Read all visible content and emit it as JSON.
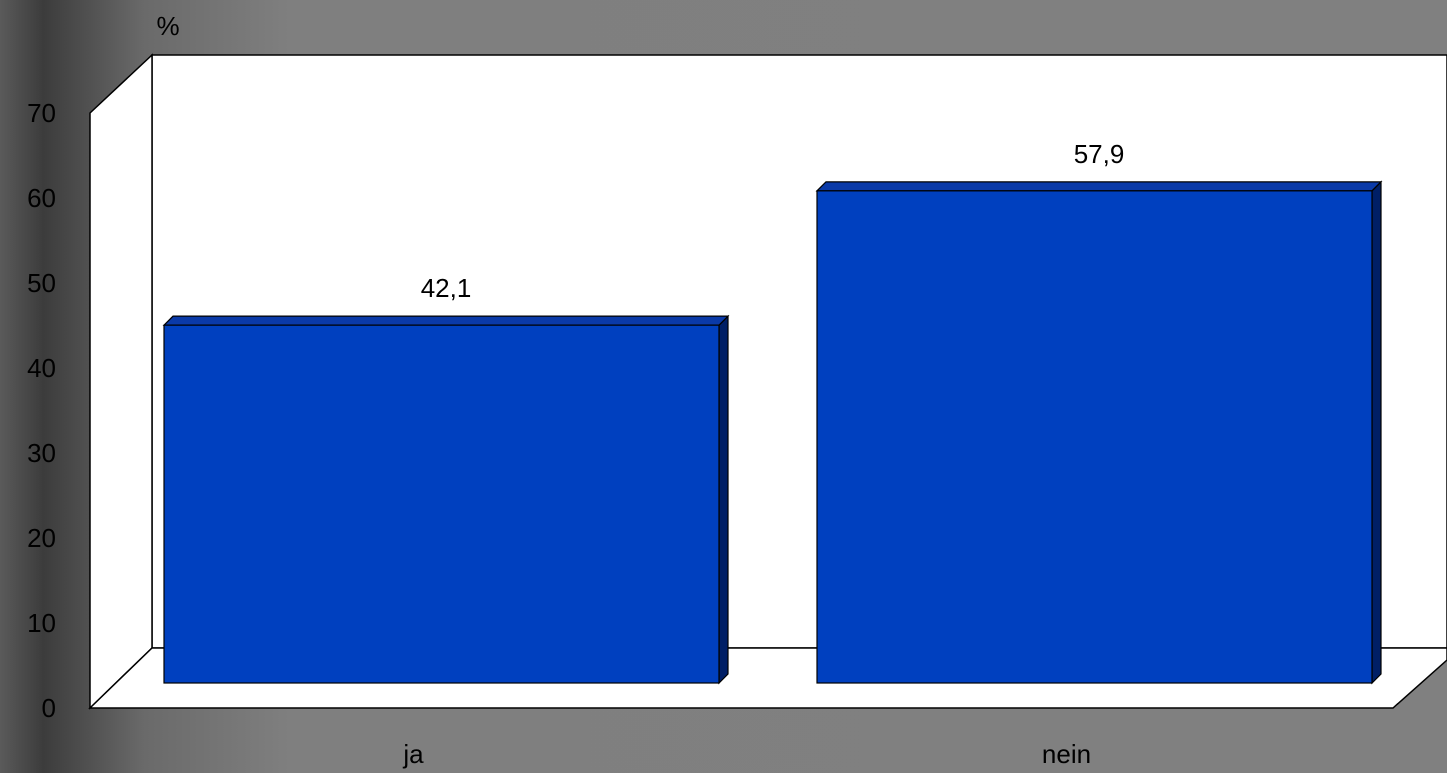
{
  "chart_data": {
    "type": "bar",
    "categories": [
      "ja",
      "nein"
    ],
    "values": [
      42.1,
      57.9
    ],
    "data_labels": [
      "42,1",
      "57,9"
    ],
    "ylabel": "%",
    "ylim": [
      0,
      70
    ],
    "yticks": [
      "0",
      "10",
      "20",
      "30",
      "40",
      "50",
      "60",
      "70"
    ],
    "grid": false,
    "legend": "none",
    "three_d": true,
    "colors": {
      "bar_front": "#0040BF",
      "bar_top": "#0A3AA8",
      "bar_side": "#001F66",
      "plot_wall": "#FFFFFF",
      "axis": "#000000"
    }
  }
}
